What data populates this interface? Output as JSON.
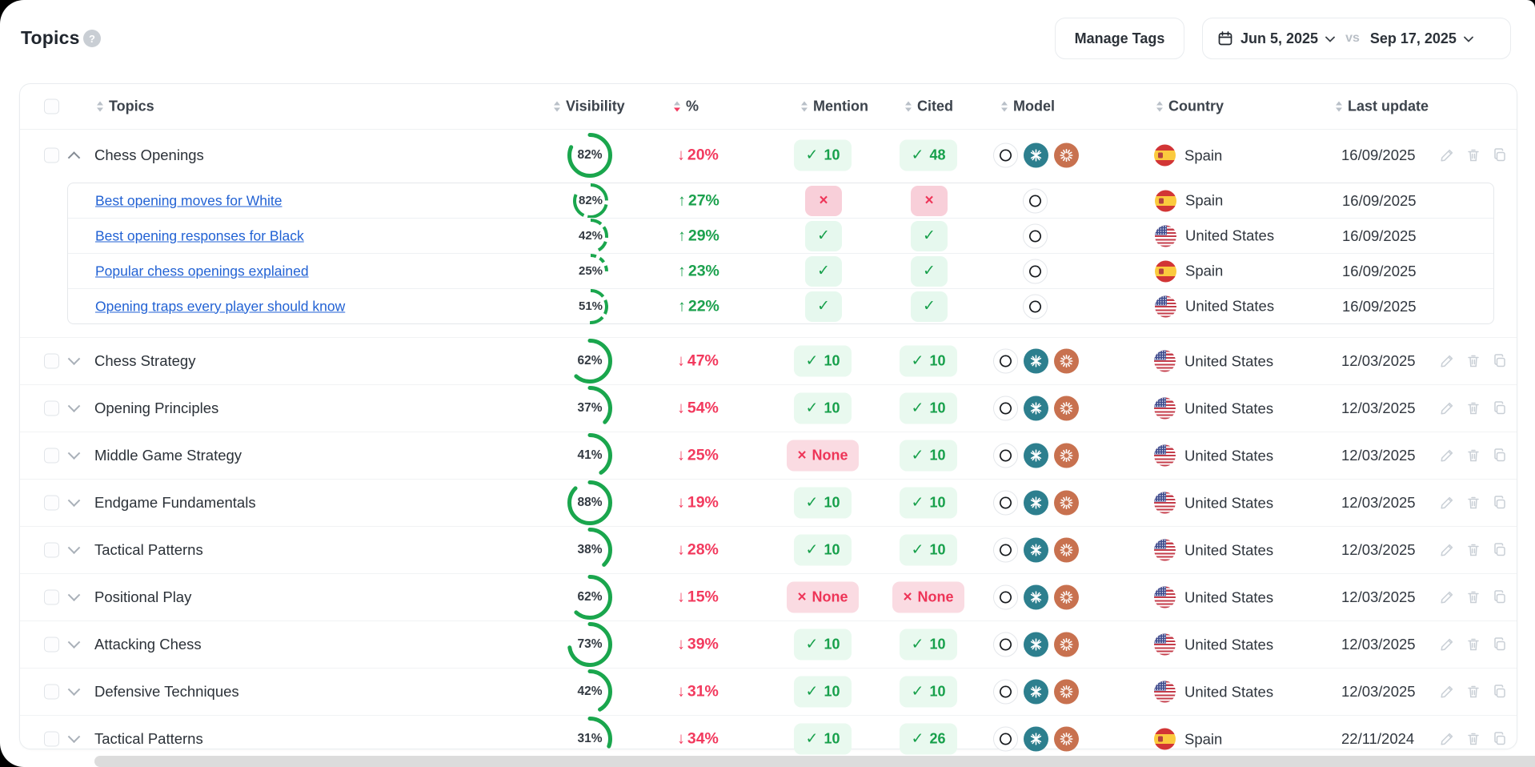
{
  "page": {
    "title": "Topics",
    "help_label": "?"
  },
  "toolbar": {
    "manage_tags_label": "Manage Tags",
    "date_from": "Jun 5, 2025",
    "date_separator": "vs",
    "date_to": "Sep 17, 2025",
    "calendar_icon": "calendar-icon"
  },
  "colors": {
    "green": "#17a04b",
    "green_ring": "#1aa64d",
    "green_badge_bg": "#e9f9ef",
    "red": "#ee3558",
    "red_badge_bg": "#fadbe2",
    "link_blue": "#2262d4",
    "perplexity_teal": "#2d7f8e",
    "claude_orange": "#c8714f"
  },
  "table": {
    "columns": [
      {
        "label": "Topics",
        "sort": "none"
      },
      {
        "label": "Visibility",
        "sort": "none"
      },
      {
        "label": "%",
        "sort": "desc"
      },
      {
        "label": "Mention",
        "sort": "none"
      },
      {
        "label": "Cited",
        "sort": "none"
      },
      {
        "label": "Model",
        "sort": "none"
      },
      {
        "label": "Country",
        "sort": "none"
      },
      {
        "label": "Last update",
        "sort": "none"
      }
    ],
    "rows": [
      {
        "topic": "Chess Openings",
        "expanded": true,
        "visibility": 82,
        "change": {
          "dir": "down",
          "value": "20%"
        },
        "mention": {
          "style": "pill-green",
          "label": "10"
        },
        "cited": {
          "style": "pill-green",
          "label": "48"
        },
        "models": [
          "openai",
          "perplexity",
          "claude"
        ],
        "country": {
          "flag": "es",
          "name": "Spain"
        },
        "last_update": "16/09/2025",
        "actions": true,
        "children": [
          {
            "topic": "Best opening moves for White",
            "visibility": 82,
            "change": {
              "dir": "up",
              "value": "27%"
            },
            "mention": {
              "style": "cell-red",
              "label": ""
            },
            "cited": {
              "style": "cell-red",
              "label": ""
            },
            "models": [
              "openai"
            ],
            "country": {
              "flag": "es",
              "name": "Spain"
            },
            "last_update": "16/09/2025"
          },
          {
            "topic": "Best opening responses for Black",
            "visibility": 42,
            "change": {
              "dir": "up",
              "value": "29%"
            },
            "mention": {
              "style": "cell-green",
              "label": ""
            },
            "cited": {
              "style": "cell-green",
              "label": ""
            },
            "models": [
              "openai"
            ],
            "country": {
              "flag": "us",
              "name": "United States"
            },
            "last_update": "16/09/2025"
          },
          {
            "topic": "Popular chess openings explained",
            "visibility": 25,
            "change": {
              "dir": "up",
              "value": "23%"
            },
            "mention": {
              "style": "cell-green",
              "label": ""
            },
            "cited": {
              "style": "cell-green",
              "label": ""
            },
            "models": [
              "openai"
            ],
            "country": {
              "flag": "es",
              "name": "Spain"
            },
            "last_update": "16/09/2025"
          },
          {
            "topic": "Opening traps every player should know",
            "visibility": 51,
            "change": {
              "dir": "up",
              "value": "22%"
            },
            "mention": {
              "style": "cell-green",
              "label": ""
            },
            "cited": {
              "style": "cell-green",
              "label": ""
            },
            "models": [
              "openai"
            ],
            "country": {
              "flag": "us",
              "name": "United States"
            },
            "last_update": "16/09/2025"
          }
        ]
      },
      {
        "topic": "Chess Strategy",
        "visibility": 62,
        "change": {
          "dir": "down",
          "value": "47%"
        },
        "mention": {
          "style": "pill-green",
          "label": "10"
        },
        "cited": {
          "style": "pill-green",
          "label": "10"
        },
        "models": [
          "openai",
          "perplexity",
          "claude"
        ],
        "country": {
          "flag": "us",
          "name": "United States"
        },
        "last_update": "12/03/2025",
        "actions": true
      },
      {
        "topic": "Opening Principles",
        "visibility": 37,
        "change": {
          "dir": "down",
          "value": "54%"
        },
        "mention": {
          "style": "pill-green",
          "label": "10"
        },
        "cited": {
          "style": "pill-green",
          "label": "10"
        },
        "models": [
          "openai",
          "perplexity",
          "claude"
        ],
        "country": {
          "flag": "us",
          "name": "United States"
        },
        "last_update": "12/03/2025",
        "actions": true
      },
      {
        "topic": "Middle Game Strategy",
        "visibility": 41,
        "change": {
          "dir": "down",
          "value": "25%"
        },
        "mention": {
          "style": "pill-red",
          "label": "None"
        },
        "cited": {
          "style": "pill-green",
          "label": "10"
        },
        "models": [
          "openai",
          "perplexity",
          "claude"
        ],
        "country": {
          "flag": "us",
          "name": "United States"
        },
        "last_update": "12/03/2025",
        "actions": true
      },
      {
        "topic": "Endgame Fundamentals",
        "visibility": 88,
        "change": {
          "dir": "down",
          "value": "19%"
        },
        "mention": {
          "style": "pill-green",
          "label": "10"
        },
        "cited": {
          "style": "pill-green",
          "label": "10"
        },
        "models": [
          "openai",
          "perplexity",
          "claude"
        ],
        "country": {
          "flag": "us",
          "name": "United States"
        },
        "last_update": "12/03/2025",
        "actions": true
      },
      {
        "topic": "Tactical Patterns",
        "visibility": 38,
        "change": {
          "dir": "down",
          "value": "28%"
        },
        "mention": {
          "style": "pill-green",
          "label": "10"
        },
        "cited": {
          "style": "pill-green",
          "label": "10"
        },
        "models": [
          "openai",
          "perplexity",
          "claude"
        ],
        "country": {
          "flag": "us",
          "name": "United States"
        },
        "last_update": "12/03/2025",
        "actions": true
      },
      {
        "topic": "Positional Play",
        "visibility": 62,
        "change": {
          "dir": "down",
          "value": "15%"
        },
        "mention": {
          "style": "pill-red",
          "label": "None"
        },
        "cited": {
          "style": "pill-red",
          "label": "None"
        },
        "models": [
          "openai",
          "perplexity",
          "claude"
        ],
        "country": {
          "flag": "us",
          "name": "United States"
        },
        "last_update": "12/03/2025",
        "actions": true
      },
      {
        "topic": "Attacking Chess",
        "visibility": 73,
        "change": {
          "dir": "down",
          "value": "39%"
        },
        "mention": {
          "style": "pill-green",
          "label": "10"
        },
        "cited": {
          "style": "pill-green",
          "label": "10"
        },
        "models": [
          "openai",
          "perplexity",
          "claude"
        ],
        "country": {
          "flag": "us",
          "name": "United States"
        },
        "last_update": "12/03/2025",
        "actions": true
      },
      {
        "topic": "Defensive Techniques",
        "visibility": 42,
        "change": {
          "dir": "down",
          "value": "31%"
        },
        "mention": {
          "style": "pill-green",
          "label": "10"
        },
        "cited": {
          "style": "pill-green",
          "label": "10"
        },
        "models": [
          "openai",
          "perplexity",
          "claude"
        ],
        "country": {
          "flag": "us",
          "name": "United States"
        },
        "last_update": "12/03/2025",
        "actions": true
      },
      {
        "topic": "Tactical Patterns",
        "visibility": 31,
        "change": {
          "dir": "down",
          "value": "34%"
        },
        "mention": {
          "style": "pill-green",
          "label": "10"
        },
        "cited": {
          "style": "pill-green",
          "label": "26"
        },
        "models": [
          "openai",
          "perplexity",
          "claude"
        ],
        "country": {
          "flag": "es",
          "name": "Spain"
        },
        "last_update": "22/11/2024",
        "actions": true
      }
    ]
  }
}
